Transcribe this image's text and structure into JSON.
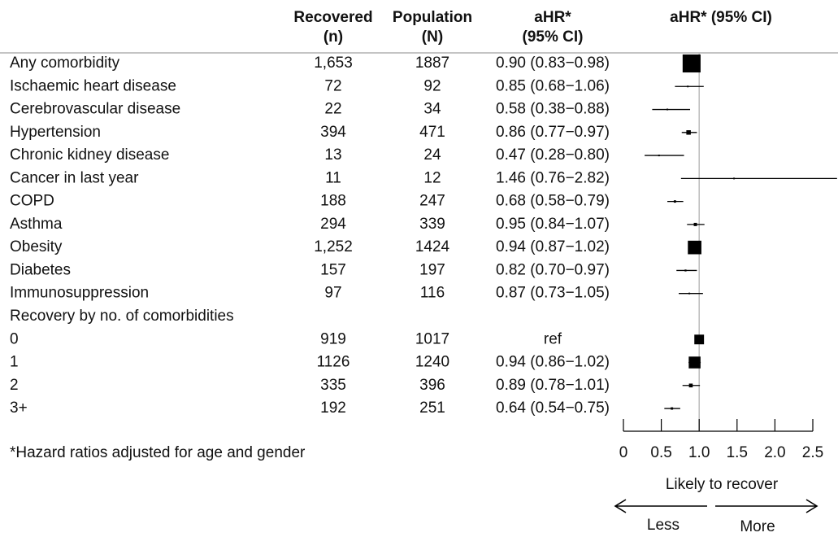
{
  "chart_data": {
    "type": "forest",
    "headers": {
      "recovered": [
        "Recovered",
        "(n)"
      ],
      "population": [
        "Population",
        "(N)"
      ],
      "ci": [
        "aHR*",
        "(95% CI)"
      ],
      "plot": "aHR* (95% CI)"
    },
    "rows": [
      {
        "label": "Any comorbidity",
        "recovered": "1,653",
        "population": 1887,
        "ci_label": "0.90 (0.83−0.98)",
        "estimate": 0.9,
        "lower": 0.83,
        "upper": 0.98
      },
      {
        "label": "Ischaemic heart disease",
        "recovered": "72",
        "population": 92,
        "ci_label": "0.85 (0.68−1.06)",
        "estimate": 0.85,
        "lower": 0.68,
        "upper": 1.06
      },
      {
        "label": "Cerebrovascular disease",
        "recovered": "22",
        "population": 34,
        "ci_label": "0.58 (0.38−0.88)",
        "estimate": 0.58,
        "lower": 0.38,
        "upper": 0.88
      },
      {
        "label": "Hypertension",
        "recovered": "394",
        "population": 471,
        "ci_label": "0.86 (0.77−0.97)",
        "estimate": 0.86,
        "lower": 0.77,
        "upper": 0.97
      },
      {
        "label": "Chronic kidney disease",
        "recovered": "13",
        "population": 24,
        "ci_label": "0.47 (0.28−0.80)",
        "estimate": 0.47,
        "lower": 0.28,
        "upper": 0.8
      },
      {
        "label": "Cancer in last year",
        "recovered": "11",
        "population": 12,
        "ci_label": "1.46 (0.76−2.82)",
        "estimate": 1.46,
        "lower": 0.76,
        "upper": 2.82
      },
      {
        "label": "COPD",
        "recovered": "188",
        "population": 247,
        "ci_label": "0.68 (0.58−0.79)",
        "estimate": 0.68,
        "lower": 0.58,
        "upper": 0.79
      },
      {
        "label": "Asthma",
        "recovered": "294",
        "population": 339,
        "ci_label": "0.95 (0.84−1.07)",
        "estimate": 0.95,
        "lower": 0.84,
        "upper": 1.07
      },
      {
        "label": "Obesity",
        "recovered": "1,252",
        "population": 1424,
        "ci_label": "0.94 (0.87−1.02)",
        "estimate": 0.94,
        "lower": 0.87,
        "upper": 1.02
      },
      {
        "label": "Diabetes",
        "recovered": "157",
        "population": 197,
        "ci_label": "0.82 (0.70−0.97)",
        "estimate": 0.82,
        "lower": 0.7,
        "upper": 0.97
      },
      {
        "label": "Immunosuppression",
        "recovered": "97",
        "population": 116,
        "ci_label": "0.87 (0.73−1.05)",
        "estimate": 0.87,
        "lower": 0.73,
        "upper": 1.05
      },
      {
        "label": "Recovery by no. of comorbidities"
      },
      {
        "label": "0",
        "recovered": "919",
        "population": 1017,
        "ci_label": "ref",
        "estimate": 1,
        "lower": null,
        "upper": null
      },
      {
        "label": "1",
        "recovered": "1126",
        "population": 1240,
        "ci_label": "0.94 (0.86−1.02)",
        "estimate": 0.94,
        "lower": 0.86,
        "upper": 1.02
      },
      {
        "label": "2",
        "recovered": "335",
        "population": 396,
        "ci_label": "0.89 (0.78−1.01)",
        "estimate": 0.89,
        "lower": 0.78,
        "upper": 1.01
      },
      {
        "label": "3+",
        "recovered": "192",
        "population": 251,
        "ci_label": "0.64 (0.54−0.75)",
        "estimate": 0.64,
        "lower": 0.54,
        "upper": 0.75
      }
    ],
    "xlim": [
      0,
      2.5
    ],
    "xticks": [
      0,
      0.5,
      {
        "value": 1,
        "label": "1.0"
      },
      1.5,
      {
        "value": 2,
        "label": "2.0"
      },
      2.5
    ],
    "reference_line": 1,
    "axis_label": "Likely to recover",
    "direction_left": "Less",
    "direction_right": "More",
    "footnote": "*Hazard ratios adjusted for age and gender",
    "color": "#000000"
  }
}
